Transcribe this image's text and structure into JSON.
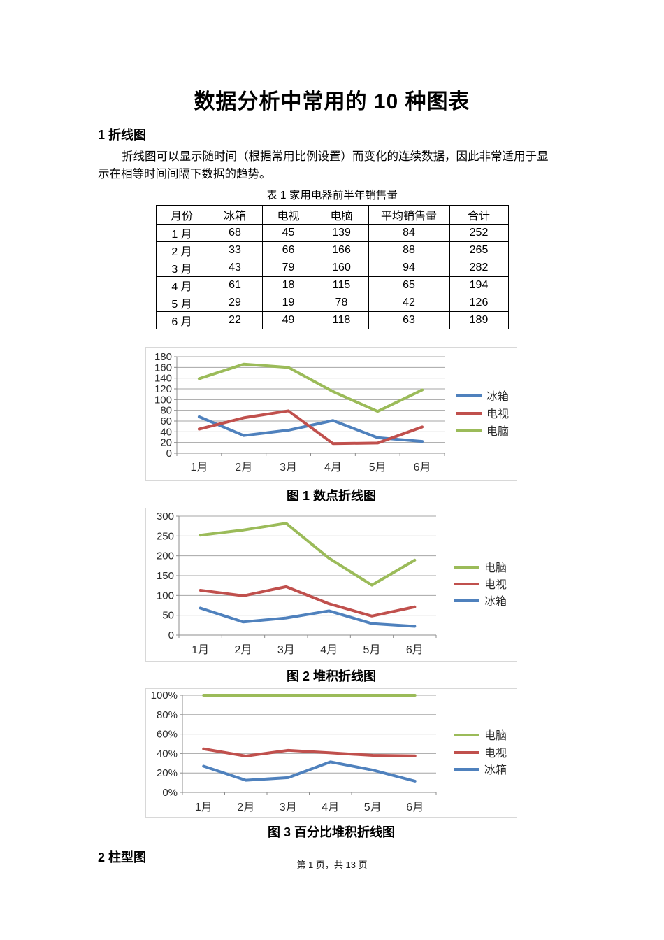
{
  "document": {
    "title": "数据分析中常用的 10 种图表",
    "section1_heading": "1 折线图",
    "paragraph_lines": [
      "折线图可以显示随时间（根据常用比例设置）而变化的连续数据，因此非常适用于显",
      "示在相等时间间隔下数据的趋势。"
    ],
    "section2_heading": "2 柱型图",
    "footer": "第 1 页，共 13 页"
  },
  "table": {
    "caption": "表 1 家用电器前半年销售量",
    "headers": [
      "月份",
      "冰箱",
      "电视",
      "电脑",
      "平均销售量",
      "合计"
    ],
    "rows": [
      [
        "1 月",
        "68",
        "45",
        "139",
        "84",
        "252"
      ],
      [
        "2 月",
        "33",
        "66",
        "166",
        "88",
        "265"
      ],
      [
        "3 月",
        "43",
        "79",
        "160",
        "94",
        "282"
      ],
      [
        "4 月",
        "61",
        "18",
        "115",
        "65",
        "194"
      ],
      [
        "5 月",
        "29",
        "19",
        "78",
        "42",
        "126"
      ],
      [
        "6 月",
        "22",
        "49",
        "118",
        "63",
        "189"
      ]
    ]
  },
  "colors": {
    "refrigerator": "#4F81BD",
    "tv": "#C0504D",
    "computer": "#9BBB59"
  },
  "chart_data": [
    {
      "type": "line",
      "title": "图 1 数点折线图",
      "categories": [
        "1月",
        "2月",
        "3月",
        "4月",
        "5月",
        "6月"
      ],
      "series": [
        {
          "name": "冰箱",
          "color": "#4F81BD",
          "values": [
            68,
            33,
            43,
            61,
            29,
            22
          ]
        },
        {
          "name": "电视",
          "color": "#C0504D",
          "values": [
            45,
            66,
            79,
            18,
            19,
            49
          ]
        },
        {
          "name": "电脑",
          "color": "#9BBB59",
          "values": [
            139,
            166,
            160,
            115,
            78,
            118
          ]
        }
      ],
      "ylim": [
        0,
        180
      ],
      "ystep": 20,
      "legend": [
        "冰箱",
        "电视",
        "电脑"
      ],
      "legend_position": "right",
      "grid": true
    },
    {
      "type": "line",
      "title": "图 2 堆积折线图",
      "subtype": "stacked",
      "categories": [
        "1月",
        "2月",
        "3月",
        "4月",
        "5月",
        "6月"
      ],
      "series": [
        {
          "name": "冰箱",
          "color": "#4F81BD",
          "values": [
            68,
            33,
            43,
            61,
            29,
            22
          ]
        },
        {
          "name": "电视",
          "color": "#C0504D",
          "values": [
            113,
            99,
            122,
            79,
            48,
            71
          ]
        },
        {
          "name": "电脑",
          "color": "#9BBB59",
          "values": [
            252,
            265,
            282,
            194,
            126,
            189
          ]
        }
      ],
      "ylim": [
        0,
        300
      ],
      "ystep": 50,
      "legend": [
        "电脑",
        "电视",
        "冰箱"
      ],
      "legend_position": "right",
      "grid": true
    },
    {
      "type": "line",
      "title": "图 3 百分比堆积折线图",
      "subtype": "percent-stacked",
      "categories": [
        "1月",
        "2月",
        "3月",
        "4月",
        "5月",
        "6月"
      ],
      "series": [
        {
          "name": "冰箱",
          "color": "#4F81BD",
          "values": [
            27.0,
            12.5,
            15.2,
            31.4,
            23.0,
            11.6
          ]
        },
        {
          "name": "电视",
          "color": "#C0504D",
          "values": [
            44.8,
            37.4,
            43.3,
            40.7,
            38.1,
            37.6
          ]
        },
        {
          "name": "电脑",
          "color": "#9BBB59",
          "values": [
            100,
            100,
            100,
            100,
            100,
            100
          ]
        }
      ],
      "ylim": [
        0,
        100
      ],
      "ystep": 20,
      "y_format": "percent",
      "legend": [
        "电脑",
        "电视",
        "冰箱"
      ],
      "legend_position": "right",
      "grid": true
    }
  ]
}
